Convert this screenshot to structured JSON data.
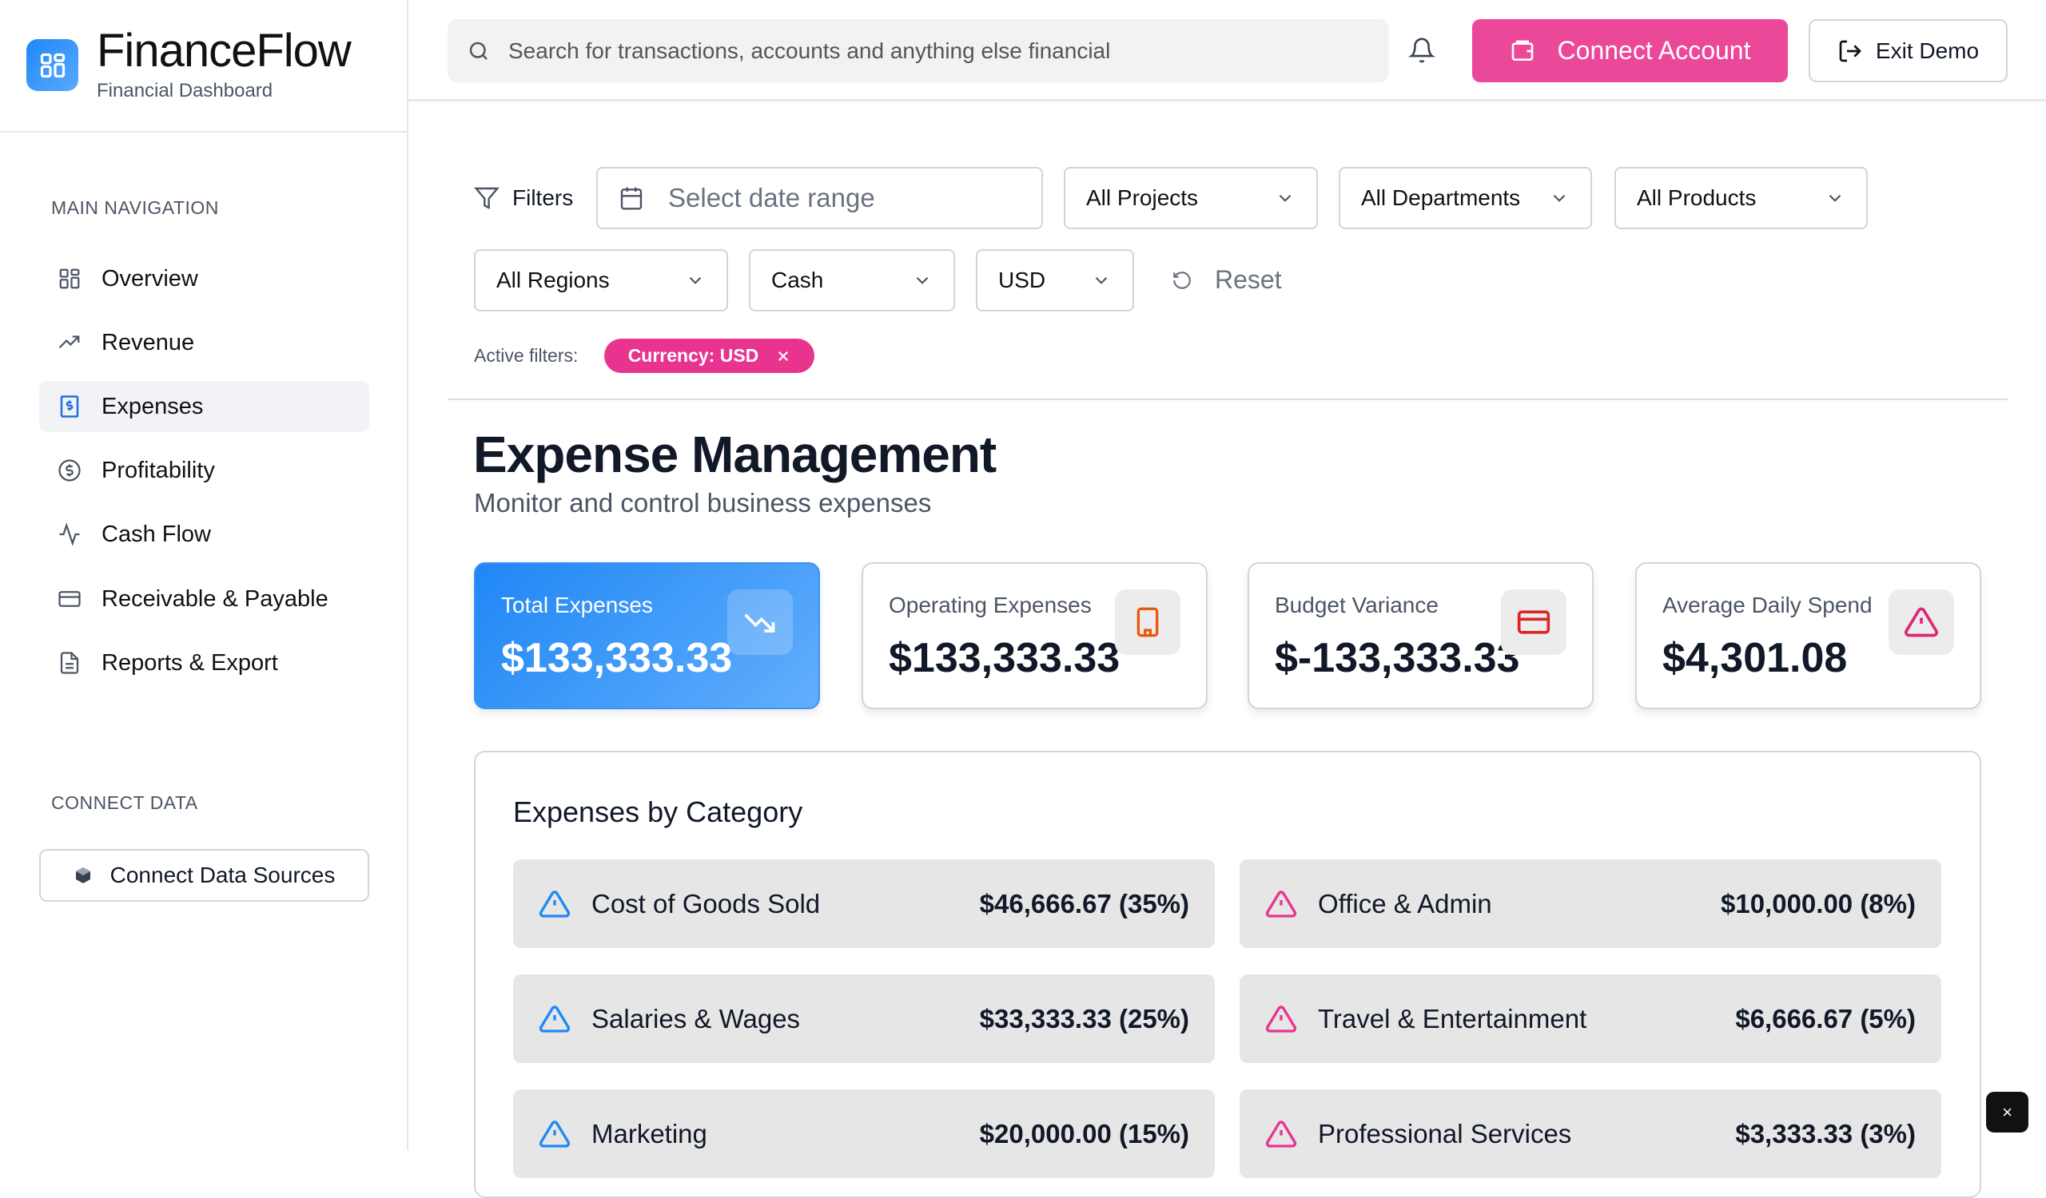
{
  "app": {
    "name": "FinanceFlow",
    "subtitle": "Financial Dashboard"
  },
  "sidebar": {
    "main_heading": "MAIN NAVIGATION",
    "items": [
      {
        "label": "Overview",
        "icon": "grid-icon"
      },
      {
        "label": "Revenue",
        "icon": "trending-up-icon"
      },
      {
        "label": "Expenses",
        "icon": "receipt-icon",
        "active": true
      },
      {
        "label": "Profitability",
        "icon": "dollar-circle-icon"
      },
      {
        "label": "Cash Flow",
        "icon": "activity-icon"
      },
      {
        "label": "Receivable & Payable",
        "icon": "credit-card-icon"
      },
      {
        "label": "Reports & Export",
        "icon": "file-icon"
      }
    ],
    "connect_heading": "CONNECT DATA",
    "connect_button": "Connect Data Sources"
  },
  "topbar": {
    "search_placeholder": "Search for transactions, accounts and anything else financial",
    "connect_label": "Connect Account",
    "exit_label": "Exit Demo"
  },
  "filters": {
    "label": "Filters",
    "date_placeholder": "Select date range",
    "projects": "All Projects",
    "departments": "All Departments",
    "products": "All Products",
    "regions": "All Regions",
    "basis": "Cash",
    "currency": "USD",
    "reset": "Reset",
    "active_label": "Active filters:",
    "active_chip": "Currency: USD"
  },
  "page": {
    "title": "Expense Management",
    "subtitle": "Monitor and control business expenses"
  },
  "cards": [
    {
      "label": "Total Expenses",
      "value": "$133,333.33",
      "icon": "trending-down-icon"
    },
    {
      "label": "Operating Expenses",
      "value": "$133,333.33",
      "icon": "building-icon",
      "color": "#ea580c"
    },
    {
      "label": "Budget Variance",
      "value": "$-133,333.33",
      "icon": "credit-card-icon",
      "color": "#dc2626"
    },
    {
      "label": "Average Daily Spend",
      "value": "$4,301.08",
      "icon": "alert-triangle-icon",
      "color": "#db2777"
    }
  ],
  "categories": {
    "title": "Expenses by Category",
    "items": [
      {
        "name": "Cost of Goods Sold",
        "amount": "$46,666.67 (35%)",
        "color": "#1e88f5"
      },
      {
        "name": "Office & Admin",
        "amount": "$10,000.00 (8%)",
        "color": "#e8348e"
      },
      {
        "name": "Salaries & Wages",
        "amount": "$33,333.33 (25%)",
        "color": "#1e88f5"
      },
      {
        "name": "Travel & Entertainment",
        "amount": "$6,666.67 (5%)",
        "color": "#e8348e"
      },
      {
        "name": "Marketing",
        "amount": "$20,000.00 (15%)",
        "color": "#1e88f5"
      },
      {
        "name": "Professional Services",
        "amount": "$3,333.33 (3%)",
        "color": "#e8348e"
      }
    ]
  },
  "close_button": "×"
}
